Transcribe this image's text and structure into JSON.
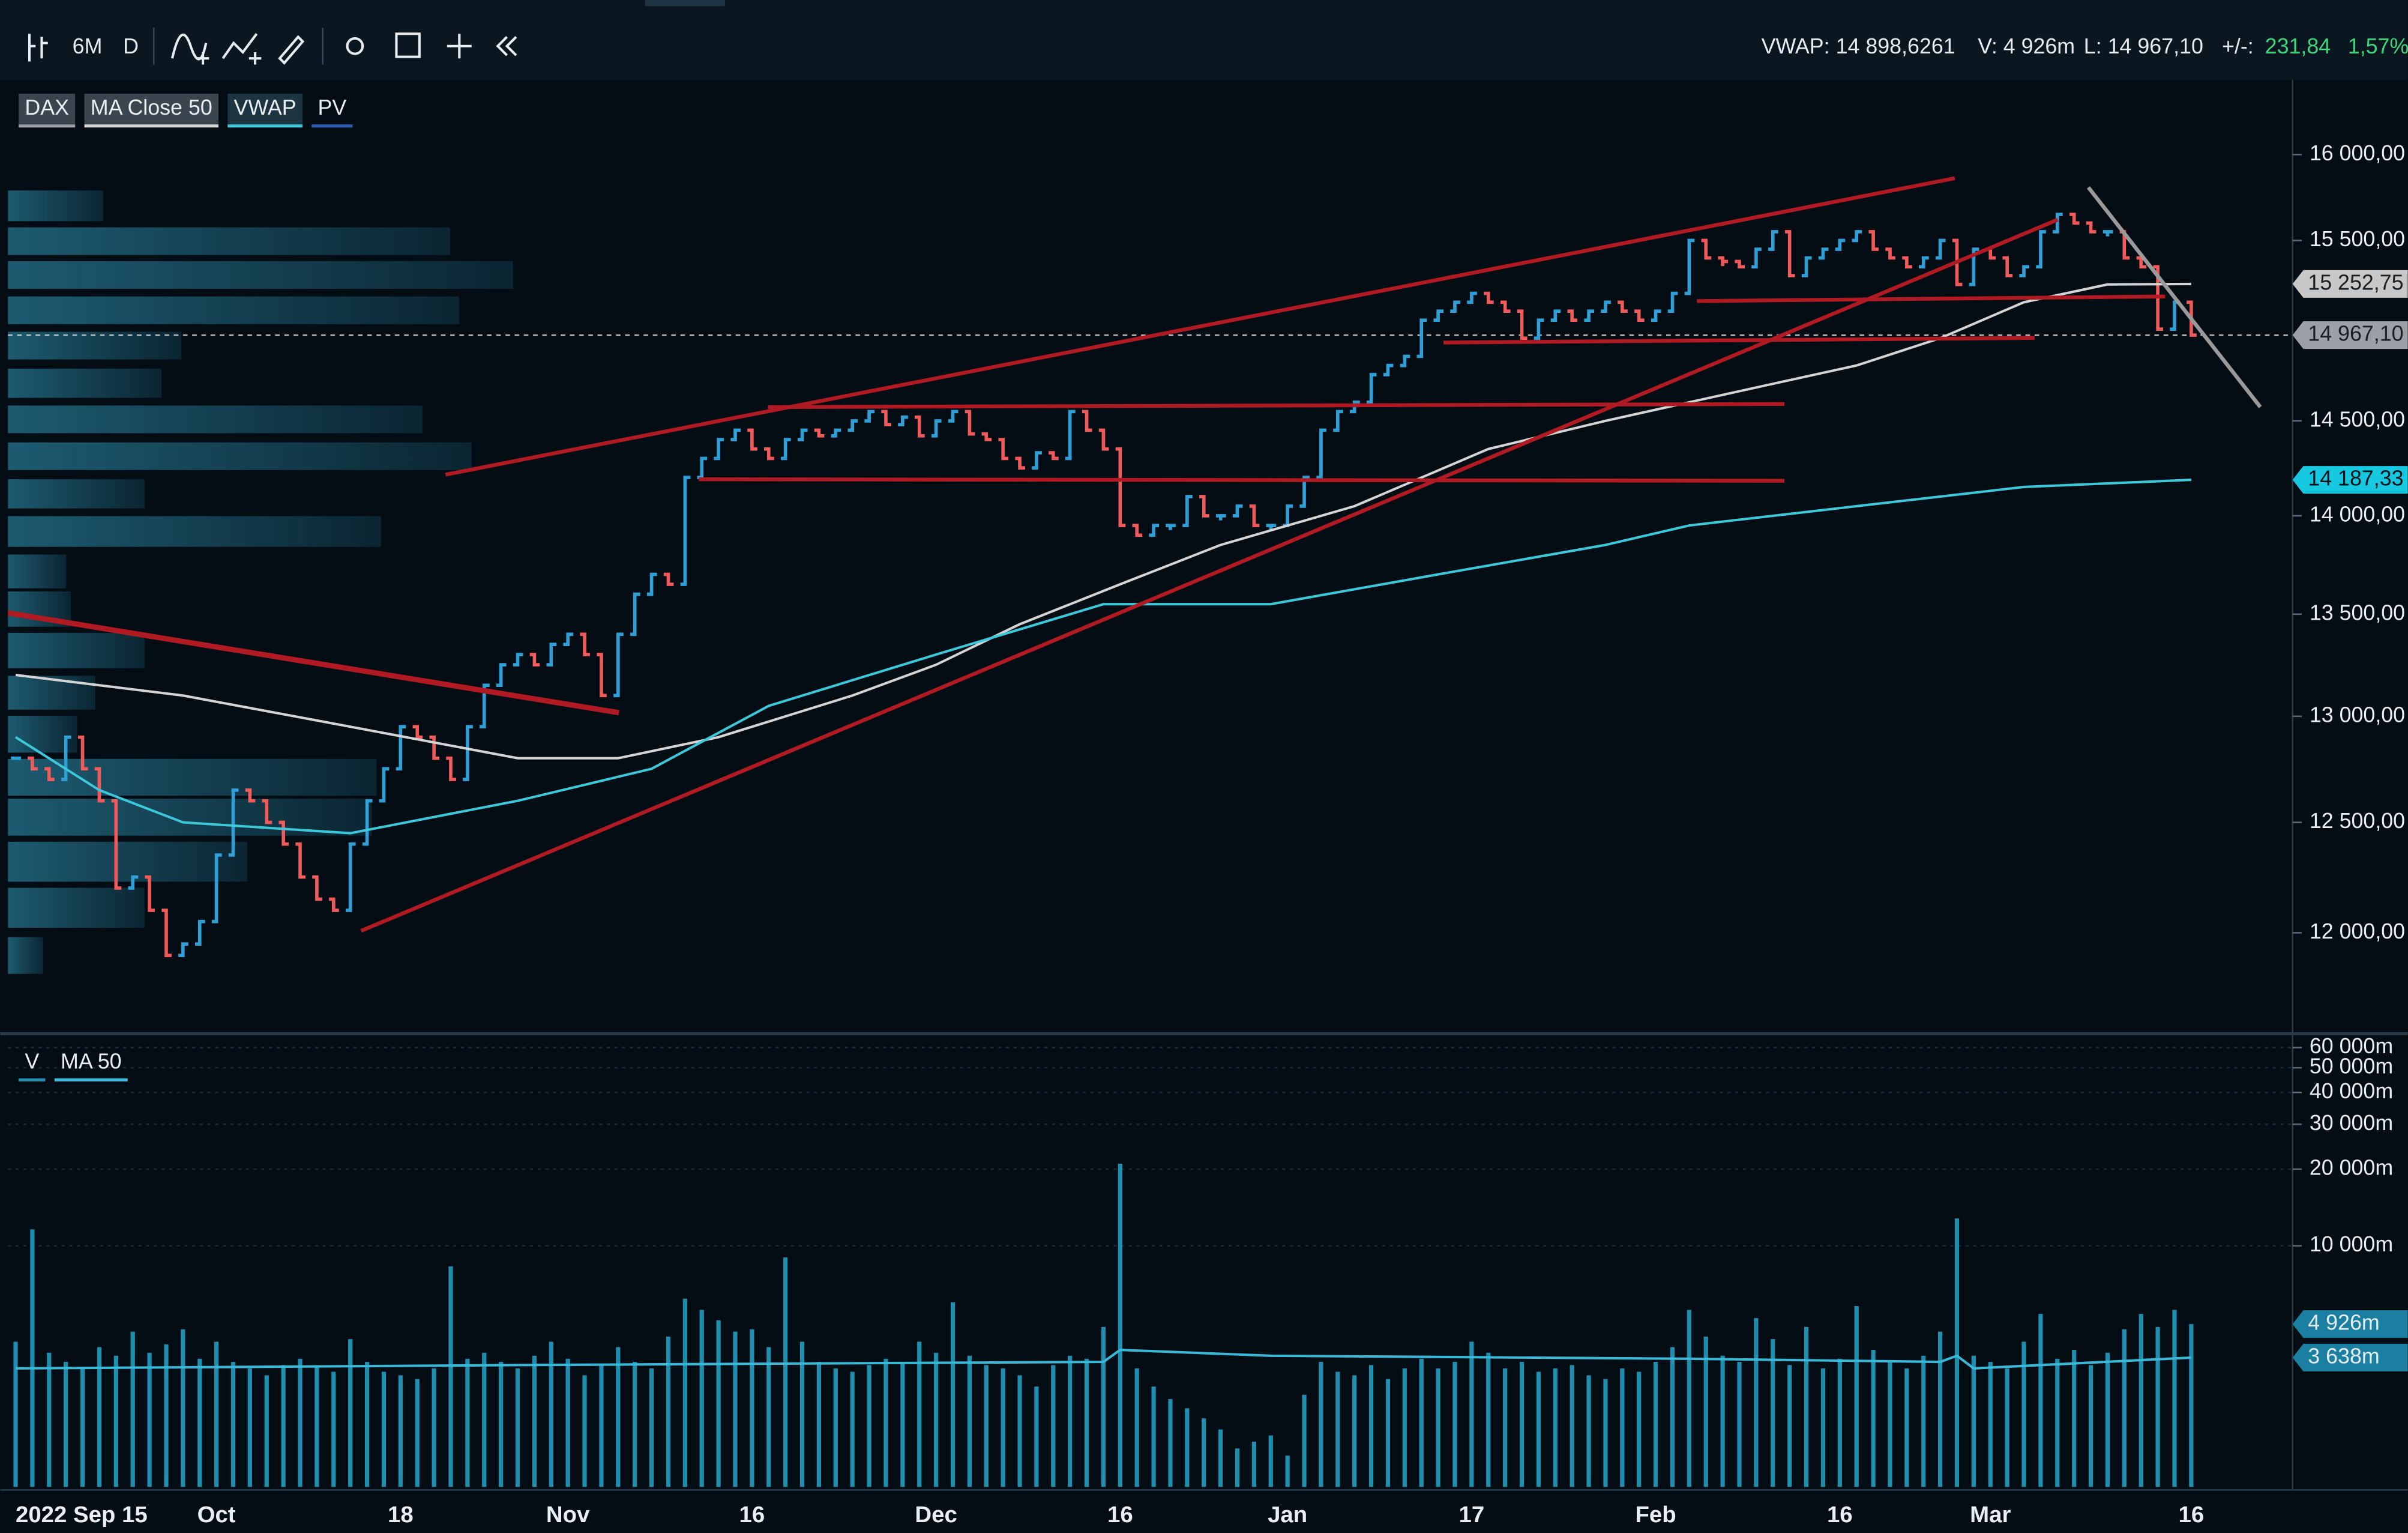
{
  "toolbar": {
    "period": "6M",
    "interval": "D"
  },
  "quote": {
    "vwap": "VWAP: 14 898,6261",
    "volume": "V: 4 926m",
    "last": "L: 14 967,10",
    "change_label": "+/-:",
    "change": "231,84",
    "change_pct": "1,57%"
  },
  "chart_data": [
    {
      "type": "stock",
      "log_scale": true,
      "ylim": [
        11580,
        16420
      ],
      "yticks": [
        {
          "value": 12000,
          "label": "12 000,00"
        },
        {
          "value": 12500,
          "label": "12 500,00"
        },
        {
          "value": 13000,
          "label": "13 000,00"
        },
        {
          "value": 13500,
          "label": "13 500,00"
        },
        {
          "value": 14000,
          "label": "14 000,00"
        },
        {
          "value": 14500,
          "label": "14 500,00"
        },
        {
          "value": 15500,
          "label": "15 500,00"
        },
        {
          "value": 16000,
          "label": "16 000,00"
        }
      ],
      "categories": [
        "2022 Sep 15",
        null,
        null,
        null,
        null,
        null,
        null,
        null,
        null,
        null,
        null,
        null,
        "Oct",
        null,
        null,
        null,
        null,
        null,
        null,
        null,
        null,
        null,
        null,
        "18",
        null,
        null,
        null,
        null,
        null,
        null,
        null,
        null,
        null,
        "Nov",
        null,
        null,
        null,
        null,
        null,
        null,
        null,
        null,
        null,
        null,
        "16",
        null,
        null,
        null,
        null,
        null,
        null,
        null,
        null,
        null,
        null,
        "Dec",
        null,
        null,
        null,
        null,
        null,
        null,
        null,
        null,
        null,
        null,
        "16",
        null,
        null,
        null,
        null,
        null,
        null,
        null,
        null,
        null,
        "Jan",
        null,
        null,
        null,
        null,
        null,
        null,
        null,
        null,
        null,
        null,
        "17",
        null,
        null,
        null,
        null,
        null,
        null,
        null,
        null,
        null,
        null,
        "Feb",
        null,
        null,
        null,
        null,
        null,
        null,
        null,
        null,
        null,
        null,
        "16",
        null,
        null,
        null,
        null,
        null,
        null,
        null,
        null,
        "Mar",
        null,
        null,
        null,
        null,
        null,
        null,
        null,
        null,
        null,
        null,
        null,
        "16"
      ],
      "series": [
        {
          "name": "DAX",
          "up_color": "#2f9fd8",
          "down_color": "#f05a5a",
          "values": [
            12800,
            12750,
            12700,
            12900,
            12750,
            12600,
            12200,
            12250,
            12100,
            11900,
            11950,
            12050,
            12350,
            12650,
            12600,
            12500,
            12400,
            12250,
            12150,
            12100,
            12400,
            12600,
            12750,
            12950,
            12900,
            12800,
            12700,
            12950,
            13150,
            13250,
            13300,
            13250,
            13350,
            13400,
            13300,
            13100,
            13400,
            13600,
            13700,
            13650,
            14200,
            14300,
            14400,
            14450,
            14350,
            14300,
            14400,
            14450,
            14420,
            14450,
            14500,
            14550,
            14480,
            14520,
            14420,
            14500,
            14550,
            14430,
            14400,
            14300,
            14250,
            14330,
            14300,
            14550,
            14450,
            14350,
            13950,
            13900,
            13950,
            13950,
            14100,
            14000,
            14000,
            14050,
            13950,
            13950,
            14050,
            14200,
            14450,
            14550,
            14600,
            14750,
            14800,
            14850,
            15050,
            15100,
            15150,
            15200,
            15150,
            15100,
            14950,
            15050,
            15100,
            15050,
            15100,
            15150,
            15100,
            15050,
            15100,
            15200,
            15500,
            15400,
            15380,
            15350,
            15450,
            15550,
            15300,
            15400,
            15450,
            15500,
            15550,
            15450,
            15400,
            15350,
            15400,
            15500,
            15250,
            15450,
            15400,
            15300,
            15350,
            15550,
            15650,
            15600,
            15550,
            15550,
            15400,
            15350,
            15000,
            15150,
            14967.1
          ]
        },
        {
          "name": "MA Close 50",
          "color": "#d4d4d4",
          "x": [
            0,
            10,
            20,
            30,
            36,
            42,
            50,
            55,
            60,
            66,
            72,
            80,
            88,
            95,
            100,
            105,
            110,
            115,
            120,
            125,
            130
          ],
          "values": [
            13200,
            13100,
            12950,
            12800,
            12800,
            12900,
            13100,
            13250,
            13450,
            13650,
            13850,
            14050,
            14350,
            14500,
            14600,
            14700,
            14800,
            14950,
            15150,
            15250,
            15252.75
          ]
        },
        {
          "name": "VWAP",
          "color": "#3cc8d8",
          "x": [
            0,
            5,
            10,
            20,
            30,
            38,
            45,
            55,
            65,
            75,
            85,
            95,
            100,
            110,
            120,
            130
          ],
          "values": [
            12900,
            12650,
            12500,
            12450,
            12600,
            12750,
            13050,
            13300,
            13550,
            13550,
            13700,
            13850,
            13950,
            14050,
            14150,
            14187.33
          ]
        }
      ],
      "profile_label": "PV",
      "badges": [
        {
          "value": 15252.75,
          "label": "15 252,75",
          "color": "#c8c8c8"
        },
        {
          "value": 14967.1,
          "label": "14 967,10",
          "color": "#9aa0a6"
        },
        {
          "value": 14187.33,
          "label": "14 187,33",
          "color": "#16c8e0"
        }
      ]
    },
    {
      "type": "volume",
      "log_scale": true,
      "ylim": [
        1130,
        61700
      ],
      "yticks": [
        {
          "value": 10000,
          "label": "10 000m"
        },
        {
          "value": 20000,
          "label": "20 000m"
        },
        {
          "value": 30000,
          "label": "30 000m"
        },
        {
          "value": 40000,
          "label": "40 000m"
        },
        {
          "value": 50000,
          "label": "50 000m"
        },
        {
          "value": 60000,
          "label": "60 000m"
        }
      ],
      "series": [
        {
          "name": "V",
          "color": "#1f8fb0",
          "values": [
            4200,
            11600,
            3800,
            3500,
            3300,
            4000,
            3700,
            4600,
            3800,
            4100,
            4700,
            3600,
            4200,
            3500,
            3300,
            3100,
            3400,
            3600,
            3400,
            3200,
            4300,
            3500,
            3200,
            3100,
            3000,
            3300,
            8300,
            3600,
            3800,
            3500,
            3300,
            3700,
            4200,
            3600,
            3100,
            3400,
            4000,
            3500,
            3300,
            4400,
            6200,
            5600,
            5100,
            4600,
            4700,
            4000,
            9000,
            4200,
            3500,
            3300,
            3200,
            3400,
            3600,
            3500,
            4200,
            3800,
            6000,
            3700,
            3400,
            3300,
            3100,
            2800,
            3400,
            3700,
            3600,
            4800,
            21000,
            3300,
            2800,
            2500,
            2300,
            2100,
            1900,
            1600,
            1700,
            1800,
            1500,
            2600,
            3500,
            3200,
            3100,
            3400,
            3000,
            3300,
            3600,
            3300,
            3500,
            4200,
            3800,
            3300,
            3500,
            3200,
            3300,
            3400,
            3100,
            3000,
            3300,
            3200,
            3500,
            4000,
            5600,
            4400,
            3700,
            3500,
            5200,
            4300,
            3400,
            4800,
            3300,
            3600,
            5800,
            3900,
            3500,
            3300,
            3700,
            4600,
            12800,
            3700,
            3500,
            3300,
            4200,
            5400,
            3600,
            3900,
            3400,
            3800,
            4700,
            5400,
            4800,
            5600,
            4926
          ]
        },
        {
          "name": "MA 50",
          "color": "#3ab8d8",
          "x": [
            0,
            30,
            65,
            66,
            75,
            100,
            115,
            116,
            117,
            130
          ],
          "values": [
            3300,
            3400,
            3500,
            3900,
            3700,
            3600,
            3500,
            3700,
            3300,
            3638
          ]
        }
      ],
      "badges": [
        {
          "value": 4926,
          "label": "4 926m",
          "color": "#1a7fa0"
        },
        {
          "value": 3638,
          "label": "3 638m",
          "color": "#1a7fa0"
        }
      ]
    }
  ]
}
